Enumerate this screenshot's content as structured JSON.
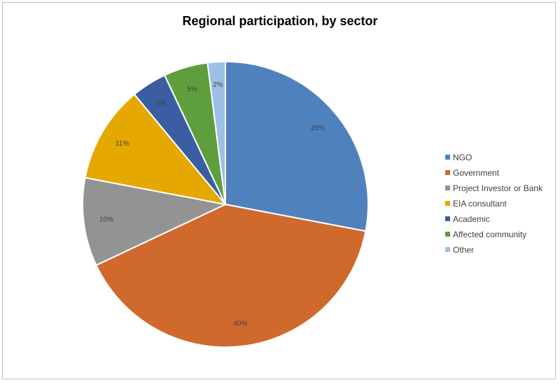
{
  "chart_data": {
    "type": "pie",
    "title": "Regional participation, by sector",
    "slices": [
      {
        "name": "NGO",
        "value": 28,
        "label": "28%",
        "color": "#4f81bd"
      },
      {
        "name": "Government",
        "value": 40,
        "label": "40%",
        "color": "#d0692c"
      },
      {
        "name": "Project Investor or Bank",
        "value": 10,
        "label": "10%",
        "color": "#939393"
      },
      {
        "name": "EIA consultant",
        "value": 11,
        "label": "11%",
        "color": "#e5a800"
      },
      {
        "name": "Academic",
        "value": 4,
        "label": "4%",
        "color": "#3a5ea1"
      },
      {
        "name": "Affected community",
        "value": 5,
        "label": "5%",
        "color": "#5e9e3d"
      },
      {
        "name": "Other",
        "value": 2,
        "label": "2%",
        "color": "#9dc0e4"
      }
    ],
    "start_angle_deg": 0,
    "direction": "clockwise",
    "legend_position": "right"
  }
}
